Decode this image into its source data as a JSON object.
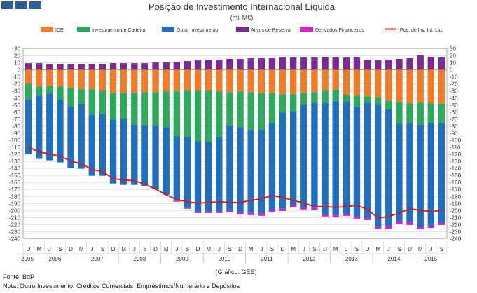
{
  "chart_data": {
    "type": "bar",
    "title": "Posição de Investimento Internacional Líquida",
    "subtitle": "(mil M€)",
    "source_note": "(Gráfico: GEE)",
    "ylim": [
      -240,
      30
    ],
    "yticks": [
      30,
      20,
      10,
      0,
      -10,
      -20,
      -30,
      -40,
      -50,
      -60,
      -70,
      -80,
      -90,
      -100,
      -110,
      -120,
      -130,
      -140,
      -150,
      -160,
      -170,
      -180,
      -190,
      -200,
      -210,
      -220,
      -230,
      -240
    ],
    "month_labels": [
      "D",
      "M",
      "J",
      "S",
      "D",
      "M",
      "J",
      "S",
      "D",
      "M",
      "J",
      "S",
      "D",
      "M",
      "J",
      "S",
      "D",
      "M",
      "J",
      "S",
      "D",
      "M",
      "J",
      "S",
      "D",
      "M",
      "J",
      "S",
      "D",
      "M",
      "J",
      "S",
      "D",
      "M",
      "J",
      "S",
      "D",
      "M",
      "J",
      "S"
    ],
    "year_labels": [
      {
        "label": "2005",
        "start": 0,
        "end": 0
      },
      {
        "label": "2006",
        "start": 1,
        "end": 4
      },
      {
        "label": "2007",
        "start": 5,
        "end": 8
      },
      {
        "label": "2008",
        "start": 9,
        "end": 12
      },
      {
        "label": "2009",
        "start": 13,
        "end": 16
      },
      {
        "label": "2010",
        "start": 17,
        "end": 20
      },
      {
        "label": "2011",
        "start": 21,
        "end": 24
      },
      {
        "label": "2012",
        "start": 25,
        "end": 28
      },
      {
        "label": "2013",
        "start": 29,
        "end": 32
      },
      {
        "label": "2014",
        "start": 33,
        "end": 36
      },
      {
        "label": "2015",
        "start": 37,
        "end": 39
      }
    ],
    "series": [
      {
        "name": "IDE",
        "color": "#f07c28",
        "values": [
          -20,
          -24,
          -23,
          -24,
          -26,
          -28,
          -28,
          -30,
          -33,
          -33,
          -33,
          -32,
          -32,
          -31,
          -31,
          -30,
          -30,
          -30,
          -31,
          -32,
          -31,
          -32,
          -33,
          -33,
          -35,
          -35,
          -33,
          -32,
          -30,
          -29,
          -36,
          -37,
          -38,
          -40,
          -44,
          -46,
          -48,
          -47,
          -48,
          -49
        ]
      },
      {
        "name": "Investimento de Carteira",
        "color": "#2aaa5a",
        "values": [
          -22,
          -13,
          -11,
          -18,
          -26,
          -21,
          -36,
          -33,
          -38,
          -37,
          -46,
          -48,
          -48,
          -51,
          -64,
          -66,
          -72,
          -73,
          -65,
          -48,
          -51,
          -54,
          -53,
          -43,
          -26,
          -25,
          -17,
          -15,
          -17,
          -16,
          -9,
          -16,
          -9,
          -10,
          -12,
          -31,
          -28,
          -32,
          -28,
          -27
        ]
      },
      {
        "name": "Outro Investimento",
        "color": "#1f6fbe",
        "values": [
          -78,
          -90,
          -95,
          -90,
          -88,
          -92,
          -87,
          -88,
          -91,
          -94,
          -85,
          -86,
          -90,
          -96,
          -92,
          -101,
          -100,
          -99,
          -106,
          -121,
          -121,
          -118,
          -119,
          -124,
          -137,
          -133,
          -146,
          -150,
          -159,
          -162,
          -160,
          -156,
          -164,
          -174,
          -166,
          -139,
          -141,
          -145,
          -146,
          -142
        ]
      },
      {
        "name": "Ativos de Reserva",
        "color": "#7b2a94",
        "values": [
          9,
          9,
          8,
          8,
          8,
          8,
          8,
          8,
          9,
          9,
          9,
          9,
          10,
          10,
          11,
          12,
          13,
          14,
          14,
          15,
          15,
          16,
          16,
          16,
          17,
          17,
          17,
          17,
          18,
          17,
          17,
          17,
          14,
          13,
          14,
          15,
          16,
          20,
          18,
          17
        ]
      },
      {
        "name": "Derivados Financeiros",
        "color": "#e21ad6",
        "values": [
          0,
          0,
          0,
          0,
          0,
          0,
          0,
          0,
          0,
          0,
          0,
          0,
          0,
          0,
          -1,
          -1,
          -2,
          -2,
          -2,
          -2,
          -3,
          -3,
          -3,
          -3,
          -3,
          -3,
          -3,
          -3,
          -3,
          -3,
          -3,
          -3,
          -3,
          -3,
          -4,
          -4,
          -4,
          -3,
          -3,
          -3
        ]
      }
    ],
    "line_series": {
      "name": "Pos. de Inv. Int. Líq.",
      "color": "#d7191c",
      "values": [
        -110,
        -117,
        -120,
        -123,
        -130,
        -134,
        -142,
        -145,
        -155,
        -157,
        -158,
        -163,
        -170,
        -178,
        -185,
        -188,
        -190,
        -189,
        -188,
        -189,
        -189,
        -186,
        -184,
        -179,
        -182,
        -186,
        -190,
        -195,
        -195,
        -196,
        -195,
        -193,
        -199,
        -211,
        -209,
        -204,
        -198,
        -200,
        -202,
        -200
      ]
    }
  },
  "footer": {
    "fonte": "Fonte: BdP",
    "nota": "Nota: Outro Investimento: Créditos Comerciais, Empréstimos/Numerário e Depósitos"
  }
}
